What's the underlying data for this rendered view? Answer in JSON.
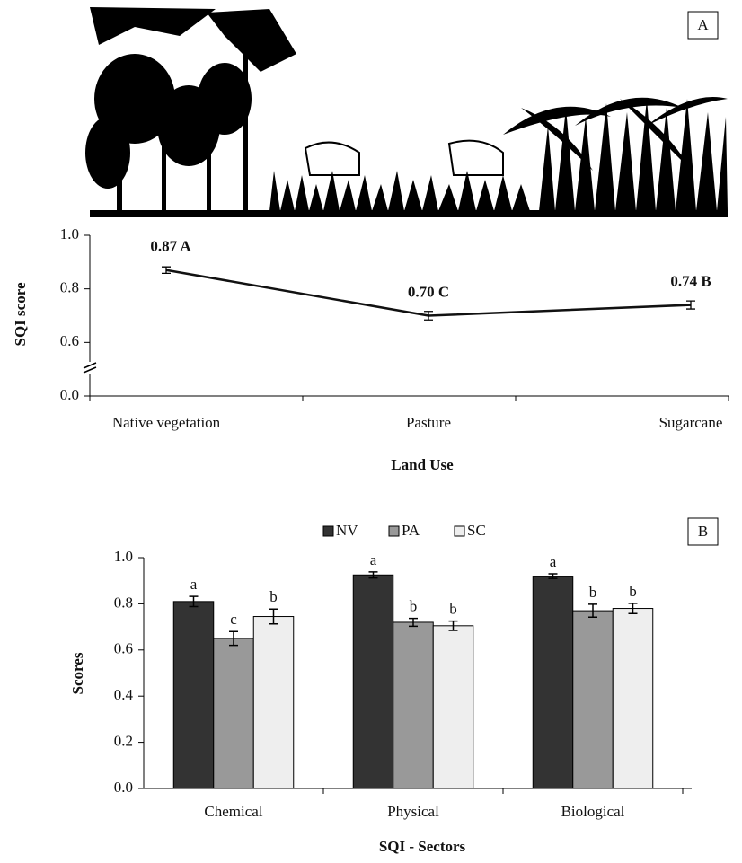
{
  "chart_data": [
    {
      "type": "line",
      "panel_label": "A",
      "y_label": "SQI score",
      "x_label": "Land Use",
      "categories": [
        "Native vegetation",
        "Pasture",
        "Sugarcane"
      ],
      "values": [
        0.87,
        0.7,
        0.74
      ],
      "errors": [
        0.012,
        0.016,
        0.015
      ],
      "value_labels": [
        "0.87 A",
        "0.70 C",
        "0.74 B"
      ],
      "color": "#111111",
      "ylim": [
        0,
        1.0
      ],
      "ybreak": [
        0,
        0.6
      ],
      "yticks": [
        {
          "value": 0,
          "label": "0.0"
        },
        0.6,
        0.8,
        {
          "value": 1.0,
          "label": "1.0"
        }
      ]
    },
    {
      "type": "bar",
      "panel_label": "B",
      "y_label": "Scores",
      "x_label": "SQI - Sectors",
      "categories": [
        "Chemical",
        "Physical",
        "Biological"
      ],
      "series": [
        {
          "name": "NV",
          "color": "#333333",
          "values": [
            0.81,
            0.925,
            0.92
          ],
          "errors": [
            0.022,
            0.013,
            0.01
          ],
          "letters": [
            "a",
            "a",
            "a"
          ]
        },
        {
          "name": "PA",
          "color": "#999999",
          "values": [
            0.65,
            0.72,
            0.77
          ],
          "errors": [
            0.03,
            0.017,
            0.028
          ],
          "letters": [
            "c",
            "b",
            "b"
          ]
        },
        {
          "name": "SC",
          "color": "#eeeeee",
          "values": [
            0.745,
            0.705,
            0.78
          ],
          "errors": [
            0.032,
            0.02,
            0.022
          ],
          "letters": [
            "b",
            "b",
            "b"
          ]
        }
      ],
      "ylim": [
        0,
        1.0
      ],
      "yticks": [
        {
          "value": 0,
          "label": "0.0"
        },
        0.2,
        0.4,
        0.6,
        0.8,
        {
          "value": 1.0,
          "label": "1.0"
        }
      ]
    }
  ]
}
